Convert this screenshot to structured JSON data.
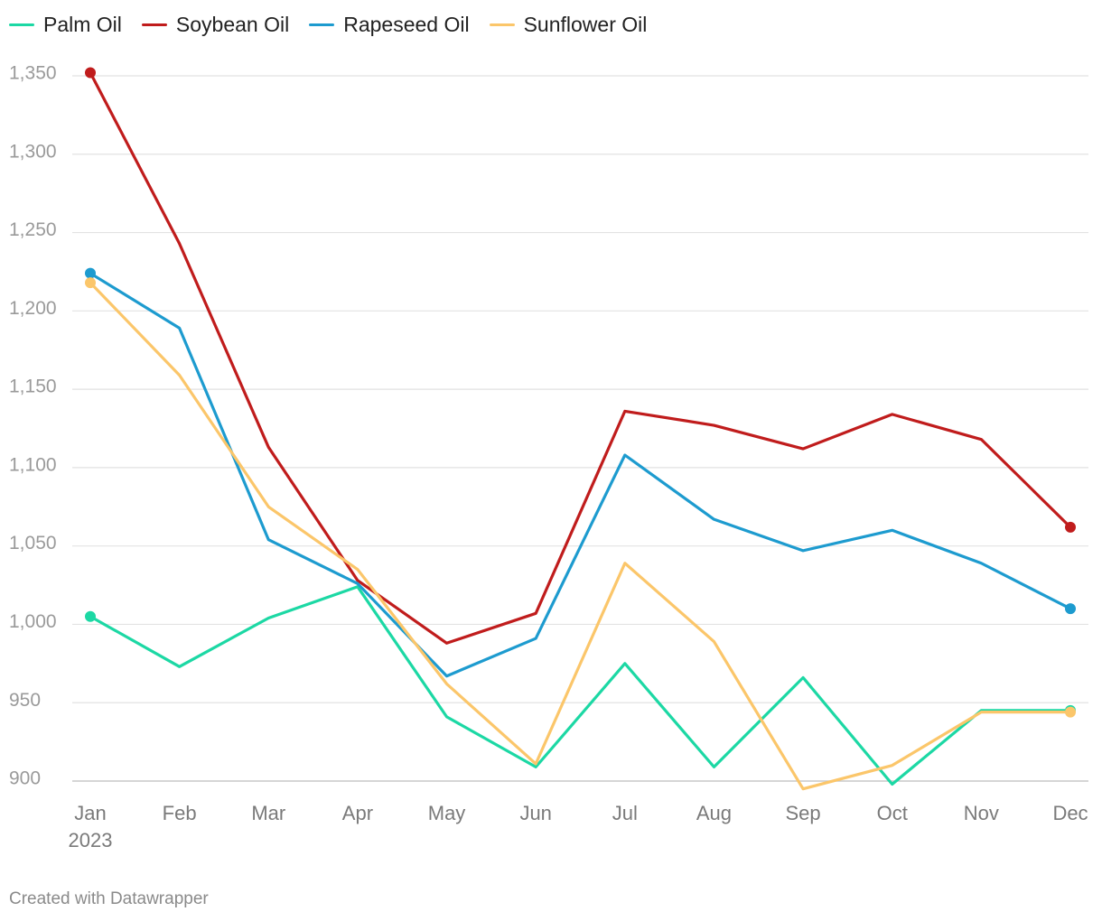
{
  "chart_data": {
    "type": "line",
    "categories": [
      "Jan",
      "Feb",
      "Mar",
      "Apr",
      "May",
      "Jun",
      "Jul",
      "Aug",
      "Sep",
      "Oct",
      "Nov",
      "Dec"
    ],
    "x_year_label": "2023",
    "series": [
      {
        "name": "Palm Oil",
        "color": "#1cd8a4",
        "values": [
          1005,
          973,
          1004,
          1024,
          941,
          909,
          975,
          909,
          966,
          898,
          945,
          945
        ]
      },
      {
        "name": "Soybean Oil",
        "color": "#c01c1c",
        "values": [
          1352,
          1243,
          1113,
          1028,
          988,
          1007,
          1136,
          1127,
          1112,
          1134,
          1118,
          1062
        ]
      },
      {
        "name": "Rapeseed Oil",
        "color": "#1d9bcf",
        "values": [
          1224,
          1189,
          1054,
          1026,
          967,
          991,
          1108,
          1067,
          1047,
          1060,
          1039,
          1010
        ]
      },
      {
        "name": "Sunflower Oil",
        "color": "#fbc66a",
        "values": [
          1218,
          1159,
          1075,
          1035,
          962,
          911,
          1039,
          989,
          895,
          910,
          944,
          944
        ]
      }
    ],
    "y_ticks": [
      "900",
      "950",
      "1,000",
      "1,050",
      "1,100",
      "1,150",
      "1,200",
      "1,250",
      "1,300",
      "1,350"
    ],
    "ylim": [
      900,
      1350
    ],
    "xlabel": "",
    "ylabel": "",
    "grid": true,
    "legend_position": "top-left"
  },
  "legend": [
    {
      "label": "Palm Oil",
      "color": "#1cd8a4"
    },
    {
      "label": "Soybean Oil",
      "color": "#c01c1c"
    },
    {
      "label": "Rapeseed Oil",
      "color": "#1d9bcf"
    },
    {
      "label": "Sunflower Oil",
      "color": "#fbc66a"
    }
  ],
  "footer": {
    "credit": "Created with Datawrapper"
  }
}
